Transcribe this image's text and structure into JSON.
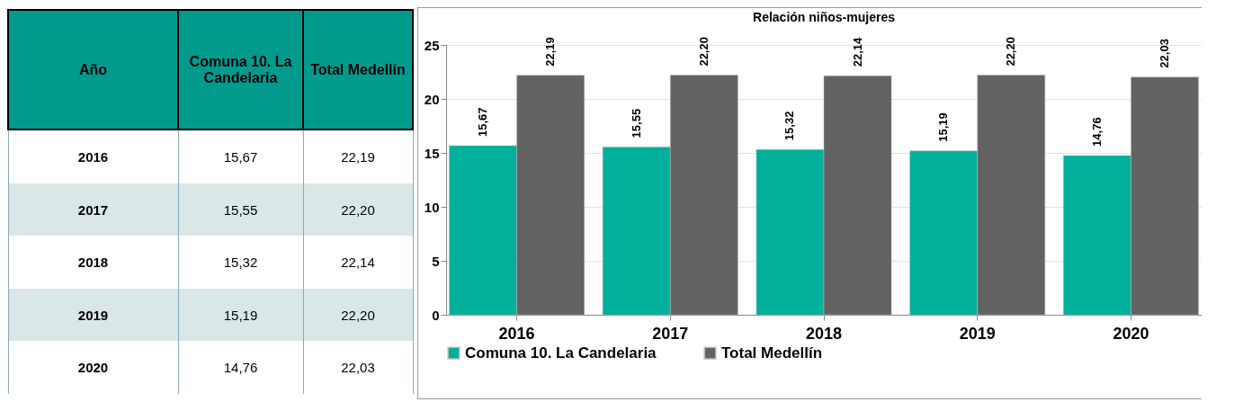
{
  "chart_data": {
    "type": "bar",
    "title": "Relación niños-mujeres",
    "annotations": [
      "Año"
    ],
    "categories": [
      "2016",
      "2017",
      "2018",
      "2019",
      "2020"
    ],
    "series": [
      {
        "name": "Comuna 10. La Candelaria",
        "color": "#00b09b",
        "values": [
          15.67,
          15.55,
          15.32,
          15.19,
          14.76
        ],
        "value_labels": [
          "15,67",
          "15,55",
          "15,32",
          "15,19",
          "14,76"
        ]
      },
      {
        "name": "Total Medellín",
        "color": "#636363",
        "values": [
          22.19,
          22.2,
          22.14,
          22.2,
          22.03
        ],
        "value_labels": [
          "22,19",
          "22,20",
          "22,14",
          "22,20",
          "22,03"
        ]
      }
    ],
    "ylim": [
      0,
      25
    ],
    "yticks": [
      0,
      5,
      10,
      15,
      20,
      25
    ],
    "grid": "y",
    "legend": "bottom"
  }
}
